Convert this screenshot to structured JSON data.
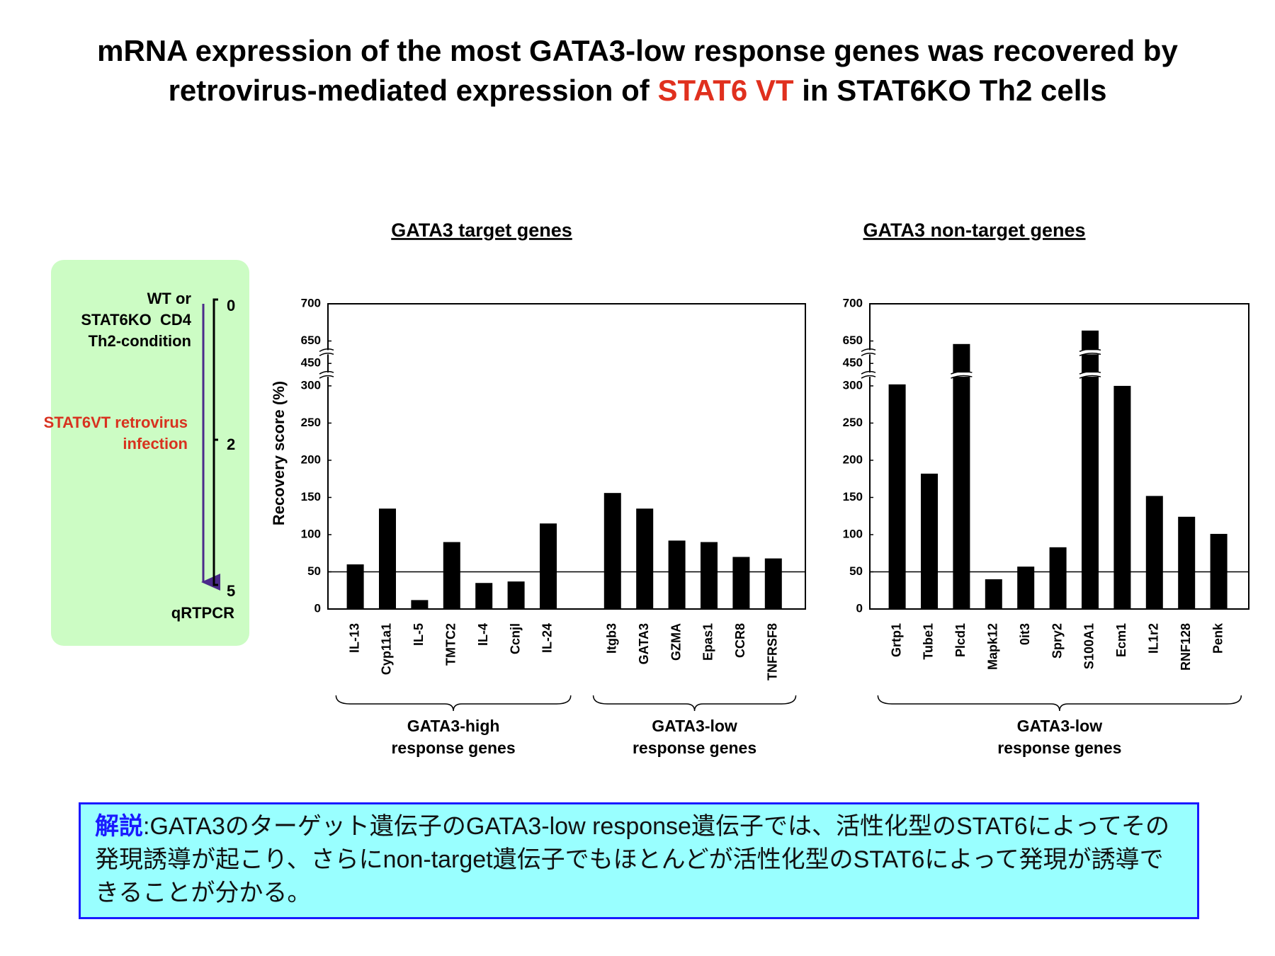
{
  "slide": {
    "title": [
      "mRNA expression of the most GATA3-low response genes was recovered by",
      "retrovirus-mediated expression of ",
      "STAT6 VT",
      " in STAT6KO Th2 cells"
    ]
  },
  "diagram": {
    "start": [
      "WT or",
      "STAT6KO  CD4",
      "Th2-condition"
    ],
    "infection": [
      "STAT6VT retrovirus",
      "infection"
    ],
    "readout": "qRTPCR",
    "days": [
      0,
      2,
      5
    ]
  },
  "chart_data": [
    {
      "type": "bar",
      "title": "GATA3 target genes",
      "y_label": "Recovery score (%)",
      "color": "#000000",
      "ylim": [
        0,
        700
      ],
      "yticks": [
        0,
        50,
        100,
        150,
        200,
        250,
        300,
        450,
        650,
        700
      ],
      "axis_breaks": [
        [
          300,
          450
        ],
        [
          450,
          650
        ]
      ],
      "reference_line": 50,
      "grid": false,
      "groups": [
        {
          "label": [
            "GATA3-high",
            "response genes"
          ],
          "categories": [
            "IL-13",
            "Cyp11a1",
            "IL-5",
            "TMTC2",
            "IL-4",
            "Ccnjl",
            "IL-24"
          ],
          "values": [
            60,
            135,
            12,
            90,
            35,
            37,
            115
          ]
        },
        {
          "label": [
            "GATA3-low",
            "response genes"
          ],
          "categories": [
            "Itgb3",
            "GATA3",
            "GZMA",
            "Epas1",
            "CCR8",
            "TNFRSF8"
          ],
          "values": [
            156,
            135,
            92,
            90,
            70,
            68
          ]
        }
      ]
    },
    {
      "type": "bar",
      "title": "GATA3 non-target genes",
      "color": "#000000",
      "ylim": [
        0,
        700
      ],
      "yticks": [
        0,
        50,
        100,
        150,
        200,
        250,
        300,
        450,
        650,
        700
      ],
      "axis_breaks": [
        [
          300,
          450
        ],
        [
          450,
          650
        ]
      ],
      "reference_line": 50,
      "grid": false,
      "groups": [
        {
          "label": [
            "GATA3-low",
            "response genes"
          ],
          "categories": [
            "Grtp1",
            "Tube1",
            "Plcd1",
            "Mapk12",
            "0it3",
            "Spry2",
            "S100A1",
            "Ecm1",
            "IL1r2",
            "RNF128",
            "Penk"
          ],
          "values": [
            310,
            182,
            623,
            40,
            57,
            83,
            664,
            300,
            152,
            124,
            101
          ]
        }
      ]
    }
  ],
  "note": {
    "label": "解説",
    "text": ":GATA3のターゲット遺伝子のGATA3-low response遺伝子では、活性化型のSTAT6によってその発現誘導が起こり、さらにnon-target遺伝子でもほとんどが活性化型のSTAT6によって発現が誘導できることが分かる。"
  }
}
